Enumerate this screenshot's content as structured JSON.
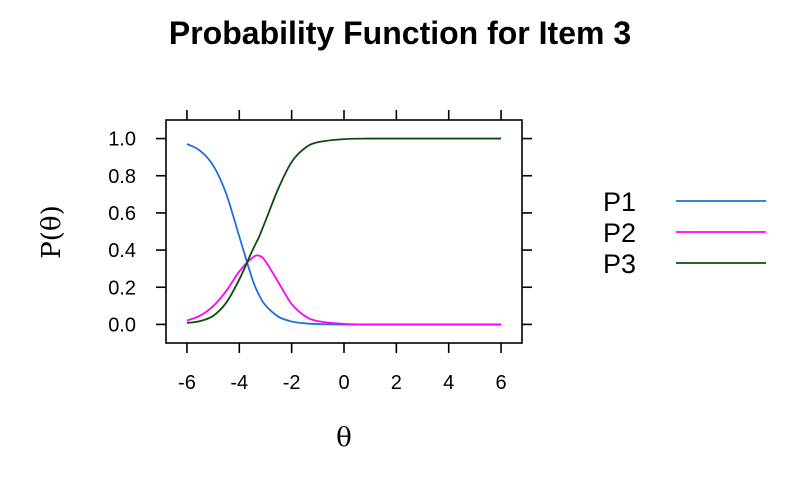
{
  "chart_data": {
    "type": "line",
    "title": "Probability Function for Item 3",
    "xlabel": "θ",
    "ylabel": "P(θ)",
    "xlim": [
      -6.8,
      6.8
    ],
    "ylim": [
      -0.1,
      1.1
    ],
    "x_ticks": [
      -6,
      -4,
      -2,
      0,
      2,
      4,
      6
    ],
    "x_tick_labels": [
      "-6",
      "-4",
      "-2",
      "0",
      "2",
      "4",
      "6"
    ],
    "y_ticks": [
      0.0,
      0.2,
      0.4,
      0.6,
      0.8,
      1.0
    ],
    "y_tick_labels": [
      "0.0",
      "0.2",
      "0.4",
      "0.6",
      "0.8",
      "1.0"
    ],
    "grid": false,
    "legend_position": "right",
    "x": [
      -6,
      -5.5,
      -5,
      -4.5,
      -4,
      -3.5,
      -3.25,
      -3,
      -2.5,
      -2,
      -1.5,
      -1,
      0,
      1,
      2,
      3,
      4,
      5,
      6
    ],
    "series": [
      {
        "name": "P1",
        "color": "#1f6fe0",
        "values": [
          0.971,
          0.935,
          0.856,
          0.703,
          0.473,
          0.243,
          0.16,
          0.103,
          0.041,
          0.016,
          0.006,
          0.002,
          0.0,
          0.0,
          0.0,
          0.0,
          0.0,
          0.0,
          0.0
        ]
      },
      {
        "name": "P2",
        "color": "#ff00ff",
        "values": [
          0.021,
          0.047,
          0.098,
          0.18,
          0.285,
          0.359,
          0.37,
          0.34,
          0.225,
          0.11,
          0.046,
          0.018,
          0.003,
          0.0,
          0.0,
          0.0,
          0.0,
          0.0,
          0.0
        ]
      },
      {
        "name": "P3",
        "color": "#0b4d0b",
        "values": [
          0.008,
          0.018,
          0.046,
          0.117,
          0.242,
          0.398,
          0.47,
          0.557,
          0.734,
          0.874,
          0.948,
          0.98,
          0.997,
          1.0,
          1.0,
          1.0,
          1.0,
          1.0,
          1.0
        ]
      }
    ]
  }
}
